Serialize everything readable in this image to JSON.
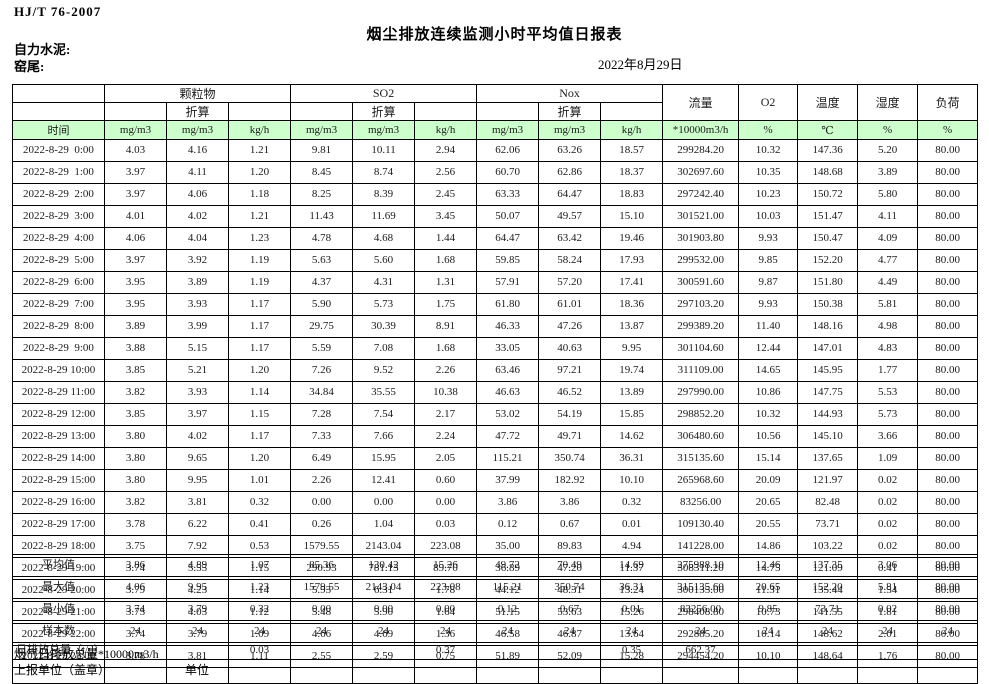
{
  "page": {
    "standard": "HJ/T  76-2007",
    "title": "烟尘排放连续监测小时平均值日报表",
    "company": "自力水泥:",
    "section": "窑尾:",
    "date": "2022年8月29日"
  },
  "colors": {
    "header_green": "#ccffcc",
    "grid_line": "#000000"
  },
  "table": {
    "col_groups": [
      {
        "label": "颗粒物",
        "sub": "折算"
      },
      {
        "label": "SO2",
        "sub": "折算"
      },
      {
        "label": "Nox",
        "sub": "折算"
      }
    ],
    "single_cols": [
      "流量",
      "O2",
      "温度",
      "湿度",
      "负荷"
    ],
    "unit_row": [
      "时间",
      "mg/m3",
      "mg/m3",
      "kg/h",
      "mg/m3",
      "mg/m3",
      "kg/h",
      "mg/m3",
      "mg/m3",
      "kg/h",
      "*10000m3/h",
      "%",
      "℃",
      "%",
      "%"
    ],
    "rows": [
      [
        "2022-8-29  0:00",
        "4.03",
        "4.16",
        "1.21",
        "9.81",
        "10.11",
        "2.94",
        "62.06",
        "63.26",
        "18.57",
        "299284.20",
        "10.32",
        "147.36",
        "5.20",
        "80.00"
      ],
      [
        "2022-8-29  1:00",
        "3.97",
        "4.11",
        "1.20",
        "8.45",
        "8.74",
        "2.56",
        "60.70",
        "62.86",
        "18.37",
        "302697.60",
        "10.35",
        "148.68",
        "3.89",
        "80.00"
      ],
      [
        "2022-8-29  2:00",
        "3.97",
        "4.06",
        "1.18",
        "8.25",
        "8.39",
        "2.45",
        "63.33",
        "64.47",
        "18.83",
        "297242.40",
        "10.23",
        "150.72",
        "5.80",
        "80.00"
      ],
      [
        "2022-8-29  3:00",
        "4.01",
        "4.02",
        "1.21",
        "11.43",
        "11.69",
        "3.45",
        "50.07",
        "49.57",
        "15.10",
        "301521.00",
        "10.03",
        "151.47",
        "4.11",
        "80.00"
      ],
      [
        "2022-8-29  4:00",
        "4.06",
        "4.04",
        "1.23",
        "4.78",
        "4.68",
        "1.44",
        "64.47",
        "63.42",
        "19.46",
        "301903.80",
        "9.93",
        "150.47",
        "4.09",
        "80.00"
      ],
      [
        "2022-8-29  5:00",
        "3.97",
        "3.92",
        "1.19",
        "5.63",
        "5.60",
        "1.68",
        "59.85",
        "58.24",
        "17.93",
        "299532.00",
        "9.85",
        "152.20",
        "4.77",
        "80.00"
      ],
      [
        "2022-8-29  6:00",
        "3.95",
        "3.89",
        "1.19",
        "4.37",
        "4.31",
        "1.31",
        "57.91",
        "57.20",
        "17.41",
        "300591.60",
        "9.87",
        "151.80",
        "4.49",
        "80.00"
      ],
      [
        "2022-8-29  7:00",
        "3.95",
        "3.93",
        "1.17",
        "5.90",
        "5.73",
        "1.75",
        "61.80",
        "61.01",
        "18.36",
        "297103.20",
        "9.93",
        "150.38",
        "5.81",
        "80.00"
      ],
      [
        "2022-8-29  8:00",
        "3.89",
        "3.99",
        "1.17",
        "29.75",
        "30.39",
        "8.91",
        "46.33",
        "47.26",
        "13.87",
        "299389.20",
        "11.40",
        "148.16",
        "4.98",
        "80.00"
      ],
      [
        "2022-8-29  9:00",
        "3.88",
        "5.15",
        "1.17",
        "5.59",
        "7.08",
        "1.68",
        "33.05",
        "40.63",
        "9.95",
        "301104.60",
        "12.44",
        "147.01",
        "4.83",
        "80.00"
      ],
      [
        "2022-8-29 10:00",
        "3.85",
        "5.21",
        "1.20",
        "7.26",
        "9.52",
        "2.26",
        "63.46",
        "97.21",
        "19.74",
        "311109.00",
        "14.65",
        "145.95",
        "1.77",
        "80.00"
      ],
      [
        "2022-8-29 11:00",
        "3.82",
        "3.93",
        "1.14",
        "34.84",
        "35.55",
        "10.38",
        "46.63",
        "46.52",
        "13.89",
        "297990.00",
        "10.86",
        "147.75",
        "5.53",
        "80.00"
      ],
      [
        "2022-8-29 12:00",
        "3.85",
        "3.97",
        "1.15",
        "7.28",
        "7.54",
        "2.17",
        "53.02",
        "54.19",
        "15.85",
        "298852.20",
        "10.32",
        "144.93",
        "5.73",
        "80.00"
      ],
      [
        "2022-8-29 13:00",
        "3.80",
        "4.02",
        "1.17",
        "7.33",
        "7.66",
        "2.24",
        "47.72",
        "49.71",
        "14.62",
        "306480.60",
        "10.56",
        "145.10",
        "3.66",
        "80.00"
      ],
      [
        "2022-8-29 14:00",
        "3.80",
        "9.65",
        "1.20",
        "6.49",
        "15.95",
        "2.05",
        "115.21",
        "350.74",
        "36.31",
        "315135.60",
        "15.14",
        "137.65",
        "1.09",
        "80.00"
      ],
      [
        "2022-8-29 15:00",
        "3.80",
        "9.95",
        "1.01",
        "2.26",
        "12.41",
        "0.60",
        "37.99",
        "182.92",
        "10.10",
        "265968.60",
        "20.09",
        "121.97",
        "0.02",
        "80.00"
      ],
      [
        "2022-8-29 16:00",
        "3.82",
        "3.81",
        "0.32",
        "0.00",
        "0.00",
        "0.00",
        "3.86",
        "3.86",
        "0.32",
        "83256.00",
        "20.65",
        "82.48",
        "0.02",
        "80.00"
      ],
      [
        "2022-8-29 17:00",
        "3.78",
        "6.22",
        "0.41",
        "0.26",
        "1.04",
        "0.03",
        "0.12",
        "0.67",
        "0.01",
        "109130.40",
        "20.55",
        "73.71",
        "0.02",
        "80.00"
      ],
      [
        "2022-8-29 18:00",
        "3.75",
        "7.92",
        "0.53",
        "1579.55",
        "2143.04",
        "223.08",
        "35.00",
        "89.83",
        "4.94",
        "141228.00",
        "14.86",
        "103.22",
        "0.02",
        "80.00"
      ],
      [
        "2022-8-29 19:00",
        "3.74",
        "5.55",
        "1.15",
        "290.93",
        "781.13",
        "89.70",
        "36.89",
        "47.20",
        "11.37",
        "308311.20",
        "14.75",
        "121.09",
        "0.41",
        "80.00"
      ],
      [
        "2022-8-29 20:00",
        "3.79",
        "4.23",
        "1.14",
        "5.93",
        "6.31",
        "1.78",
        "44.12",
        "48.31",
        "13.24",
        "300135.00",
        "11.31",
        "135.44",
        "1.54",
        "80.00"
      ],
      [
        "2022-8-29 21:00",
        "3.75",
        "4.03",
        "1.12",
        "5.48",
        "5.90",
        "1.64",
        "51.15",
        "53.63",
        "15.26",
        "298408.80",
        "10.73",
        "141.55",
        "1.81",
        "80.00"
      ],
      [
        "2022-8-29 22:00",
        "3.74",
        "3.79",
        "1.09",
        "4.66",
        "4.69",
        "1.36",
        "46.58",
        "46.87",
        "13.64",
        "292885.20",
        "10.14",
        "148.62",
        "2.01",
        "80.00"
      ],
      [
        "2022-8-29 23:00",
        "3.78",
        "3.81",
        "1.11",
        "2.55",
        "2.59",
        "0.75",
        "51.89",
        "52.09",
        "15.28",
        "294454.20",
        "10.10",
        "148.64",
        "1.76",
        "80.00"
      ]
    ],
    "summary_rows": [
      {
        "label": "平均值",
        "values": [
          "3.86",
          "4.89",
          "1.07",
          "85.36",
          "130.42",
          "15.26",
          "49.72",
          "70.49",
          "14.69",
          "275988.10",
          "12.46",
          "137.35",
          "3.06",
          "80.00"
        ]
      },
      {
        "label": "最大值",
        "values": [
          "4.06",
          "9.95",
          "1.23",
          "1579.55",
          "2143.04",
          "223.08",
          "115.21",
          "350.74",
          "36.31",
          "315135.60",
          "20.65",
          "152.20",
          "5.81",
          "80.00"
        ]
      },
      {
        "label": "最小值",
        "values": [
          "3.74",
          "3.79",
          "0.32",
          "0.00",
          "0.00",
          "0.00",
          "0.12",
          "0.67",
          "0.01",
          "83256.00",
          "9.85",
          "73.71",
          "0.02",
          "80.00"
        ]
      },
      {
        "label": "样本数",
        "values": [
          "24",
          "24",
          "24",
          "24",
          "24",
          "24",
          "24",
          "24",
          "24",
          "24",
          "24",
          "24",
          "24",
          "24"
        ]
      }
    ],
    "total_row": {
      "label": "日排放总量（t/d）",
      "cells": [
        "",
        "0.03",
        "",
        "",
        "0.37",
        "",
        "",
        "0.35",
        "662.37",
        "",
        "",
        "",
        ""
      ]
    }
  },
  "footer": {
    "note": "烟气日排放总量*10000m3/h",
    "report_unit": "上报单位（盖章）",
    "unit": "单位"
  }
}
